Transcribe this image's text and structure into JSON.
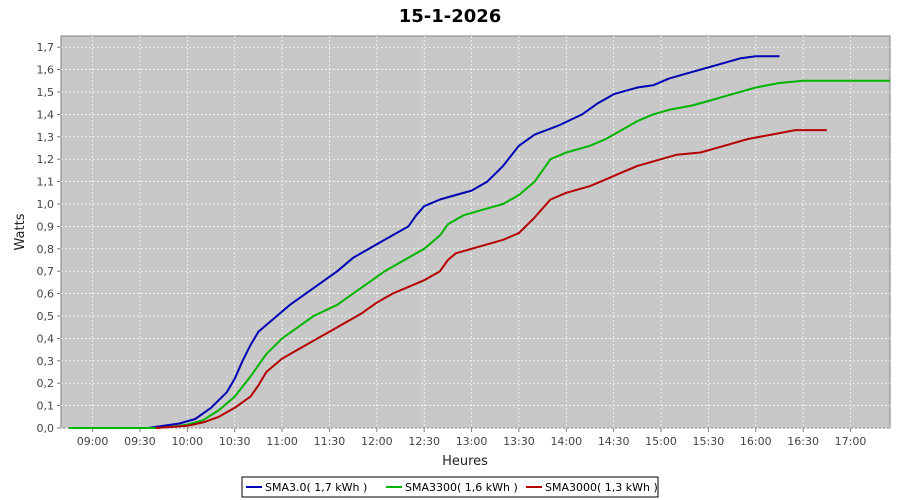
{
  "chart_data": {
    "type": "line",
    "title": "15-1-2026",
    "xlabel": "Heures",
    "ylabel": "Watts",
    "ylim": [
      0,
      1.75
    ],
    "xlim": [
      "08:40",
      "17:25"
    ],
    "x_ticks": [
      "09:00",
      "09:30",
      "10:00",
      "10:30",
      "11:00",
      "11:30",
      "12:00",
      "12:30",
      "13:00",
      "13:30",
      "14:00",
      "14:30",
      "15:00",
      "15:30",
      "16:00",
      "16:30",
      "17:00"
    ],
    "y_ticks": [
      "0,0",
      "0,1",
      "0,2",
      "0,3",
      "0,4",
      "0,5",
      "0,6",
      "0,7",
      "0,8",
      "0,9",
      "1,0",
      "1,1",
      "1,2",
      "1,3",
      "1,4",
      "1,5",
      "1,6",
      "1,7"
    ],
    "grid": true,
    "plot_background": "#c8c8c8",
    "legend_position": "bottom",
    "series": [
      {
        "name": "SMA3.0( 1,7 kWh )",
        "color": "#0000b4",
        "points": [
          [
            "09:35",
            0.0
          ],
          [
            "09:45",
            0.01
          ],
          [
            "09:55",
            0.02
          ],
          [
            "10:05",
            0.04
          ],
          [
            "10:15",
            0.09
          ],
          [
            "10:25",
            0.16
          ],
          [
            "10:30",
            0.22
          ],
          [
            "10:35",
            0.3
          ],
          [
            "10:40",
            0.37
          ],
          [
            "10:45",
            0.43
          ],
          [
            "10:55",
            0.49
          ],
          [
            "11:05",
            0.55
          ],
          [
            "11:15",
            0.6
          ],
          [
            "11:25",
            0.65
          ],
          [
            "11:35",
            0.7
          ],
          [
            "11:45",
            0.76
          ],
          [
            "11:55",
            0.8
          ],
          [
            "12:05",
            0.84
          ],
          [
            "12:20",
            0.9
          ],
          [
            "12:25",
            0.95
          ],
          [
            "12:30",
            0.99
          ],
          [
            "12:40",
            1.02
          ],
          [
            "12:50",
            1.04
          ],
          [
            "13:00",
            1.06
          ],
          [
            "13:10",
            1.1
          ],
          [
            "13:20",
            1.17
          ],
          [
            "13:30",
            1.26
          ],
          [
            "13:40",
            1.31
          ],
          [
            "13:55",
            1.35
          ],
          [
            "14:10",
            1.4
          ],
          [
            "14:20",
            1.45
          ],
          [
            "14:30",
            1.49
          ],
          [
            "14:45",
            1.52
          ],
          [
            "14:55",
            1.53
          ],
          [
            "15:05",
            1.56
          ],
          [
            "15:20",
            1.59
          ],
          [
            "15:30",
            1.61
          ],
          [
            "15:40",
            1.63
          ],
          [
            "15:50",
            1.65
          ],
          [
            "16:00",
            1.66
          ],
          [
            "16:15",
            1.66
          ]
        ]
      },
      {
        "name": "SMA3300( 1,6 kWh )",
        "color": "#00b400",
        "points": [
          [
            "08:45",
            0.0
          ],
          [
            "09:30",
            0.0
          ],
          [
            "09:40",
            0.0
          ],
          [
            "09:50",
            0.005
          ],
          [
            "10:00",
            0.015
          ],
          [
            "10:10",
            0.035
          ],
          [
            "10:20",
            0.08
          ],
          [
            "10:30",
            0.14
          ],
          [
            "10:40",
            0.23
          ],
          [
            "10:50",
            0.33
          ],
          [
            "11:00",
            0.4
          ],
          [
            "11:10",
            0.45
          ],
          [
            "11:20",
            0.5
          ],
          [
            "11:35",
            0.55
          ],
          [
            "11:45",
            0.6
          ],
          [
            "11:55",
            0.65
          ],
          [
            "12:05",
            0.7
          ],
          [
            "12:15",
            0.74
          ],
          [
            "12:25",
            0.78
          ],
          [
            "12:30",
            0.8
          ],
          [
            "12:40",
            0.86
          ],
          [
            "12:45",
            0.91
          ],
          [
            "12:55",
            0.95
          ],
          [
            "13:05",
            0.97
          ],
          [
            "13:20",
            1.0
          ],
          [
            "13:30",
            1.04
          ],
          [
            "13:40",
            1.1
          ],
          [
            "13:50",
            1.2
          ],
          [
            "14:00",
            1.23
          ],
          [
            "14:15",
            1.26
          ],
          [
            "14:25",
            1.29
          ],
          [
            "14:35",
            1.33
          ],
          [
            "14:45",
            1.37
          ],
          [
            "14:55",
            1.4
          ],
          [
            "15:05",
            1.42
          ],
          [
            "15:20",
            1.44
          ],
          [
            "15:30",
            1.46
          ],
          [
            "15:45",
            1.49
          ],
          [
            "16:00",
            1.52
          ],
          [
            "16:15",
            1.54
          ],
          [
            "16:30",
            1.55
          ],
          [
            "17:00",
            1.55
          ],
          [
            "17:25",
            1.55
          ]
        ]
      },
      {
        "name": "SMA3000( 1,3 kWh )",
        "color": "#b40000",
        "points": [
          [
            "09:40",
            0.0
          ],
          [
            "09:50",
            0.005
          ],
          [
            "10:00",
            0.01
          ],
          [
            "10:10",
            0.025
          ],
          [
            "10:20",
            0.05
          ],
          [
            "10:30",
            0.09
          ],
          [
            "10:40",
            0.14
          ],
          [
            "10:45",
            0.19
          ],
          [
            "10:50",
            0.25
          ],
          [
            "11:00",
            0.31
          ],
          [
            "11:10",
            0.35
          ],
          [
            "11:20",
            0.39
          ],
          [
            "11:30",
            0.43
          ],
          [
            "11:40",
            0.47
          ],
          [
            "11:50",
            0.51
          ],
          [
            "12:00",
            0.56
          ],
          [
            "12:10",
            0.6
          ],
          [
            "12:20",
            0.63
          ],
          [
            "12:30",
            0.66
          ],
          [
            "12:40",
            0.7
          ],
          [
            "12:45",
            0.75
          ],
          [
            "12:50",
            0.78
          ],
          [
            "13:00",
            0.8
          ],
          [
            "13:10",
            0.82
          ],
          [
            "13:20",
            0.84
          ],
          [
            "13:30",
            0.87
          ],
          [
            "13:40",
            0.94
          ],
          [
            "13:50",
            1.02
          ],
          [
            "14:00",
            1.05
          ],
          [
            "14:15",
            1.08
          ],
          [
            "14:25",
            1.11
          ],
          [
            "14:35",
            1.14
          ],
          [
            "14:45",
            1.17
          ],
          [
            "15:00",
            1.2
          ],
          [
            "15:10",
            1.22
          ],
          [
            "15:25",
            1.23
          ],
          [
            "15:40",
            1.26
          ],
          [
            "15:55",
            1.29
          ],
          [
            "16:10",
            1.31
          ],
          [
            "16:25",
            1.33
          ],
          [
            "16:45",
            1.33
          ]
        ]
      }
    ]
  }
}
